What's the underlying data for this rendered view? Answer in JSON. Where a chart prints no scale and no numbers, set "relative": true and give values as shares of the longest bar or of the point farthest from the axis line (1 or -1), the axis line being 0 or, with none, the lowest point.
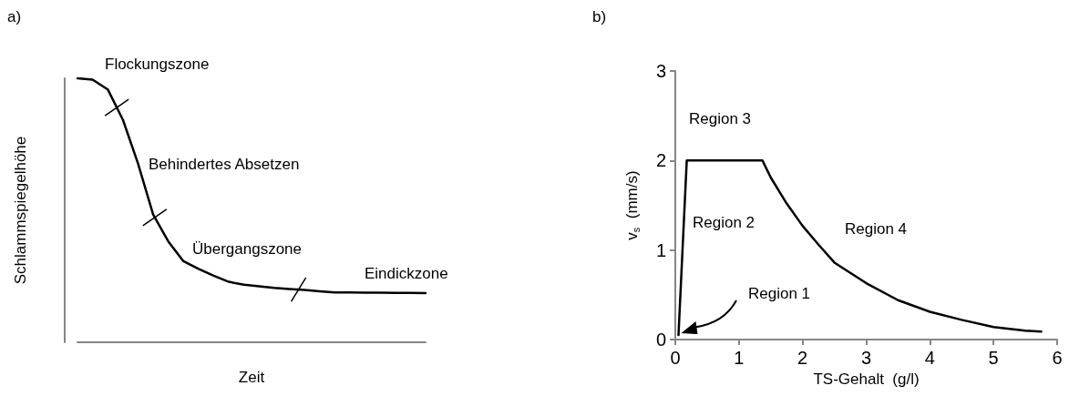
{
  "chart_data": [
    {
      "type": "line",
      "relative": true,
      "title": "a)",
      "xlabel": "Zeit",
      "ylabel": "Schlammspiegelhöhe",
      "categories": [
        null,
        null,
        null,
        null,
        null,
        null,
        null,
        null,
        null,
        null,
        null,
        null,
        null,
        null,
        null,
        null,
        null,
        null,
        null,
        null,
        null,
        null,
        null,
        null
      ],
      "series": [
        {
          "color": "#000000",
          "values": [
            1,
            0.995,
            0.958,
            0.843,
            0.677,
            0.484,
            0.382,
            0.307,
            0.278,
            0.252,
            0.229,
            0.218,
            0.212,
            0.206,
            0.202,
            0.198,
            0.193,
            0.189,
            0.189,
            0.188,
            0.188,
            0.187,
            0.187,
            0.186
          ]
        }
      ],
      "annotations": [
        "Flockungszone",
        "Behindertes Absetzen",
        "Übergangszone",
        "Eindickzone"
      ],
      "marker": "none",
      "line_style": "solid",
      "grid": false,
      "tick_labels": false
    },
    {
      "type": "line",
      "title": "b)",
      "xlabel": "TS-Gehalt  (g/l)",
      "ylabel": "v$_{s}$  (mm/s)",
      "x": [
        0.05,
        0.18,
        1.0,
        1.37,
        1.5,
        1.75,
        2.0,
        2.25,
        2.5,
        3.0,
        3.5,
        4.0,
        4.5,
        5.0,
        5.5,
        5.75
      ],
      "series": [
        {
          "color": "#000000",
          "values": [
            0.05,
            2.0,
            2.0,
            2.0,
            1.81,
            1.52,
            1.27,
            1.06,
            0.86,
            0.63,
            0.44,
            0.31,
            0.22,
            0.14,
            0.1,
            0.09
          ]
        }
      ],
      "xlim": [
        0,
        6
      ],
      "xticks": [
        0,
        1,
        2,
        3,
        4,
        5,
        6
      ],
      "ylim": [
        0,
        3
      ],
      "yticks": [
        0,
        1,
        2,
        3
      ],
      "annotations": [
        "Region 3",
        "Region 2",
        "Region 4",
        "Region 1"
      ],
      "marker": "none",
      "line_style": "solid",
      "grid": false
    }
  ]
}
